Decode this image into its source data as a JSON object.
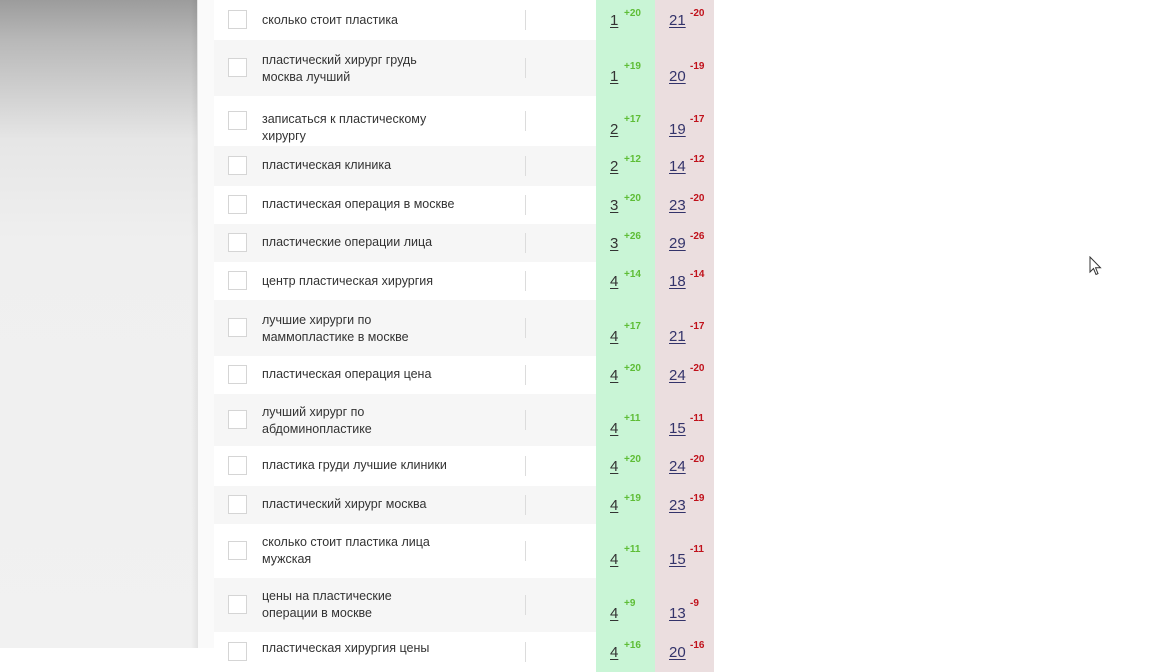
{
  "colors": {
    "positive_bg": "#c9f5d6",
    "negative_bg": "#ebdedf",
    "positive_delta": "#5ebd36",
    "negative_delta": "#c0111b"
  },
  "rows": [
    {
      "keyword": "сколько стоит пластика",
      "pos": "1",
      "pos_delta": "+20",
      "neg": "21",
      "neg_delta": "-20"
    },
    {
      "keyword": "пластический хирург грудь москва лучший",
      "pos": "1",
      "pos_delta": "+19",
      "neg": "20",
      "neg_delta": "-19"
    },
    {
      "keyword": "записаться к пластическому хирургу",
      "pos": "2",
      "pos_delta": "+17",
      "neg": "19",
      "neg_delta": "-17"
    },
    {
      "keyword": "пластическая клиника",
      "pos": "2",
      "pos_delta": "+12",
      "neg": "14",
      "neg_delta": "-12"
    },
    {
      "keyword": "пластическая операция в москве",
      "pos": "3",
      "pos_delta": "+20",
      "neg": "23",
      "neg_delta": "-20"
    },
    {
      "keyword": "пластические операции лица",
      "pos": "3",
      "pos_delta": "+26",
      "neg": "29",
      "neg_delta": "-26"
    },
    {
      "keyword": "центр пластическая хирургия",
      "pos": "4",
      "pos_delta": "+14",
      "neg": "18",
      "neg_delta": "-14"
    },
    {
      "keyword": "лучшие хирурги по маммопластике в москве",
      "pos": "4",
      "pos_delta": "+17",
      "neg": "21",
      "neg_delta": "-17"
    },
    {
      "keyword": "пластическая операция цена",
      "pos": "4",
      "pos_delta": "+20",
      "neg": "24",
      "neg_delta": "-20"
    },
    {
      "keyword": "лучший хирург по абдоминопластике",
      "pos": "4",
      "pos_delta": "+11",
      "neg": "15",
      "neg_delta": "-11"
    },
    {
      "keyword": "пластика груди лучшие клиники",
      "pos": "4",
      "pos_delta": "+20",
      "neg": "24",
      "neg_delta": "-20"
    },
    {
      "keyword": "пластический хирург москва",
      "pos": "4",
      "pos_delta": "+19",
      "neg": "23",
      "neg_delta": "-19"
    },
    {
      "keyword": "сколько стоит пластика лица мужская",
      "pos": "4",
      "pos_delta": "+11",
      "neg": "15",
      "neg_delta": "-11"
    },
    {
      "keyword": "цены на пластические операции в москве",
      "pos": "4",
      "pos_delta": "+9",
      "neg": "13",
      "neg_delta": "-9"
    },
    {
      "keyword": "пластическая хирургия цены",
      "pos": "4",
      "pos_delta": "+16",
      "neg": "20",
      "neg_delta": "-16"
    }
  ]
}
